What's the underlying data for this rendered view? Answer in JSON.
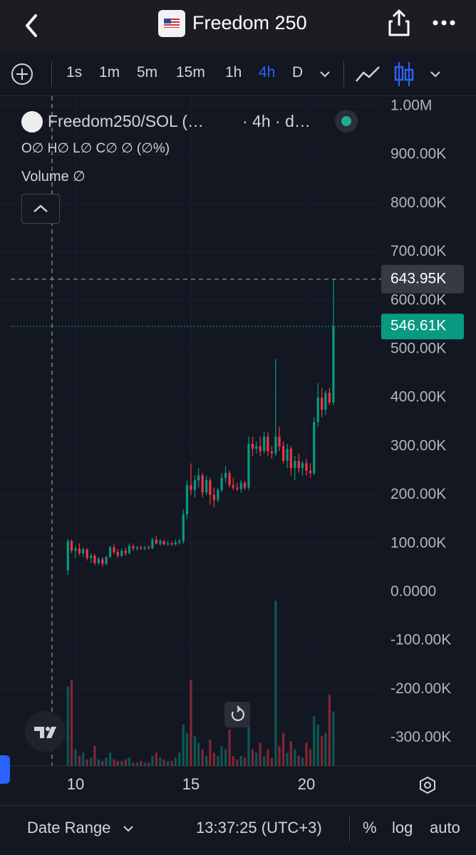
{
  "nav": {
    "title": "Freedom 250"
  },
  "toolbar": {
    "intervals": [
      "1s",
      "1m",
      "5m",
      "15m",
      "1h",
      "4h",
      "D"
    ],
    "active_interval": "4h"
  },
  "legend": {
    "symbol": "Freedom250/SOL (…",
    "interval": "· 4h · d…",
    "ohlc": "O∅ H∅ L∅ C∅ ∅ (∅%)",
    "volume": "Volume ∅"
  },
  "chart_data": {
    "type": "candlestick",
    "up_color": "#089981",
    "down_color": "#f23645",
    "x": [
      9.67,
      9.83,
      10,
      10.17,
      10.33,
      10.5,
      10.67,
      10.83,
      11,
      11.17,
      11.33,
      11.5,
      11.67,
      11.83,
      12,
      12.17,
      12.33,
      12.5,
      12.67,
      12.83,
      13,
      13.17,
      13.33,
      13.5,
      13.67,
      13.83,
      14,
      14.17,
      14.33,
      14.5,
      14.67,
      14.83,
      15,
      15.17,
      15.33,
      15.5,
      15.67,
      15.83,
      16,
      16.17,
      16.33,
      16.5,
      16.67,
      16.83,
      17,
      17.17,
      17.33,
      17.5,
      17.67,
      17.83,
      18,
      18.17,
      18.33,
      18.5,
      18.67,
      18.83,
      19,
      19.17,
      19.33,
      19.5,
      19.67,
      19.83,
      20,
      20.17,
      20.33,
      20.5,
      20.67,
      20.83,
      21,
      21.17
    ],
    "open": [
      45000,
      105000,
      85000,
      90000,
      80000,
      88000,
      70000,
      75000,
      60000,
      68000,
      58000,
      72000,
      92000,
      82000,
      75000,
      85000,
      80000,
      95000,
      90000,
      92000,
      90000,
      92000,
      90000,
      108000,
      100000,
      105000,
      98000,
      100000,
      98000,
      102000,
      105000,
      160000,
      220000,
      210000,
      230000,
      240000,
      205000,
      230000,
      200000,
      190000,
      210000,
      235000,
      245000,
      220000,
      215000,
      212000,
      225000,
      215000,
      305000,
      295000,
      300000,
      290000,
      320000,
      290000,
      285000,
      320000,
      300000,
      270000,
      295000,
      255000,
      270000,
      255000,
      265000,
      250000,
      245000,
      350000,
      400000,
      375000,
      410000,
      390000
    ],
    "high": [
      110000,
      108000,
      95000,
      100000,
      92000,
      90000,
      80000,
      78000,
      72000,
      72000,
      75000,
      95000,
      98000,
      88000,
      90000,
      92000,
      100000,
      98000,
      95000,
      96000,
      95000,
      96000,
      112000,
      115000,
      110000,
      108000,
      106000,
      105000,
      108000,
      110000,
      170000,
      230000,
      265000,
      240000,
      255000,
      245000,
      240000,
      235000,
      215000,
      215000,
      245000,
      260000,
      250000,
      235000,
      225000,
      230000,
      228000,
      320000,
      320000,
      310000,
      320000,
      330000,
      330000,
      300000,
      480000,
      340000,
      310000,
      305000,
      300000,
      280000,
      285000,
      270000,
      275000,
      265000,
      360000,
      430000,
      420000,
      415000,
      420000,
      643950
    ],
    "low": [
      35000,
      80000,
      70000,
      75000,
      72000,
      65000,
      60000,
      55000,
      55000,
      52000,
      55000,
      70000,
      78000,
      70000,
      72000,
      75000,
      78000,
      85000,
      85000,
      87000,
      86000,
      88000,
      88000,
      98000,
      95000,
      96000,
      95000,
      95000,
      96000,
      98000,
      100000,
      150000,
      200000,
      195000,
      215000,
      195000,
      200000,
      180000,
      175000,
      185000,
      205000,
      225000,
      215000,
      210000,
      208000,
      205000,
      210000,
      210000,
      280000,
      285000,
      280000,
      285000,
      280000,
      275000,
      280000,
      290000,
      265000,
      255000,
      240000,
      230000,
      245000,
      240000,
      240000,
      235000,
      240000,
      340000,
      360000,
      365000,
      385000,
      385000
    ],
    "close": [
      105000,
      85000,
      90000,
      80000,
      88000,
      70000,
      75000,
      60000,
      68000,
      58000,
      72000,
      92000,
      82000,
      75000,
      85000,
      80000,
      95000,
      90000,
      92000,
      90000,
      92000,
      90000,
      108000,
      100000,
      105000,
      98000,
      100000,
      98000,
      102000,
      105000,
      160000,
      220000,
      210000,
      230000,
      240000,
      205000,
      230000,
      200000,
      190000,
      210000,
      235000,
      245000,
      220000,
      215000,
      212000,
      225000,
      215000,
      305000,
      295000,
      300000,
      290000,
      320000,
      290000,
      285000,
      320000,
      300000,
      270000,
      295000,
      255000,
      270000,
      255000,
      265000,
      250000,
      245000,
      350000,
      400000,
      375000,
      410000,
      390000,
      546610
    ],
    "volume": [
      48,
      52,
      10,
      6,
      8,
      4,
      5,
      12,
      4,
      3,
      5,
      8,
      4,
      3,
      3,
      4,
      5,
      2,
      2,
      3,
      2,
      2,
      6,
      8,
      5,
      4,
      3,
      3,
      5,
      8,
      25,
      20,
      52,
      18,
      14,
      10,
      6,
      16,
      8,
      6,
      12,
      10,
      22,
      6,
      4,
      6,
      5,
      35,
      10,
      8,
      14,
      6,
      10,
      5,
      100,
      12,
      20,
      8,
      15,
      10,
      6,
      5,
      14,
      10,
      30,
      25,
      18,
      20,
      43,
      33
    ],
    "xlim": [
      6.73,
      23.24
    ],
    "xticks": [
      10,
      15,
      20
    ],
    "ylim": [
      -357800,
      1020500
    ],
    "yticks": [
      {
        "value": 1000000,
        "label": "1.00M"
      },
      {
        "value": 900000,
        "label": "900.00K"
      },
      {
        "value": 800000,
        "label": "800.00K"
      },
      {
        "value": 700000,
        "label": "700.00K"
      },
      {
        "value": 600000,
        "label": "600.00K"
      },
      {
        "value": 500000,
        "label": "500.00K"
      },
      {
        "value": 400000,
        "label": "400.00K"
      },
      {
        "value": 300000,
        "label": "300.00K"
      },
      {
        "value": 200000,
        "label": "200.00K"
      },
      {
        "value": 100000,
        "label": "100.00K"
      },
      {
        "value": 0,
        "label": "0.0000"
      },
      {
        "value": -100000,
        "label": "-100.00K"
      },
      {
        "value": -200000,
        "label": "-200.00K"
      },
      {
        "value": -300000,
        "label": "-300.00K"
      }
    ],
    "crosshair_price": {
      "value": 643950,
      "label": "643.95K"
    },
    "last_price": {
      "value": 546610,
      "label": "546.61K"
    },
    "grid": true
  },
  "footer": {
    "date_range": "Date Range",
    "time": "13:37:25 (UTC+3)",
    "percent": "%",
    "log": "log",
    "auto": "auto"
  }
}
